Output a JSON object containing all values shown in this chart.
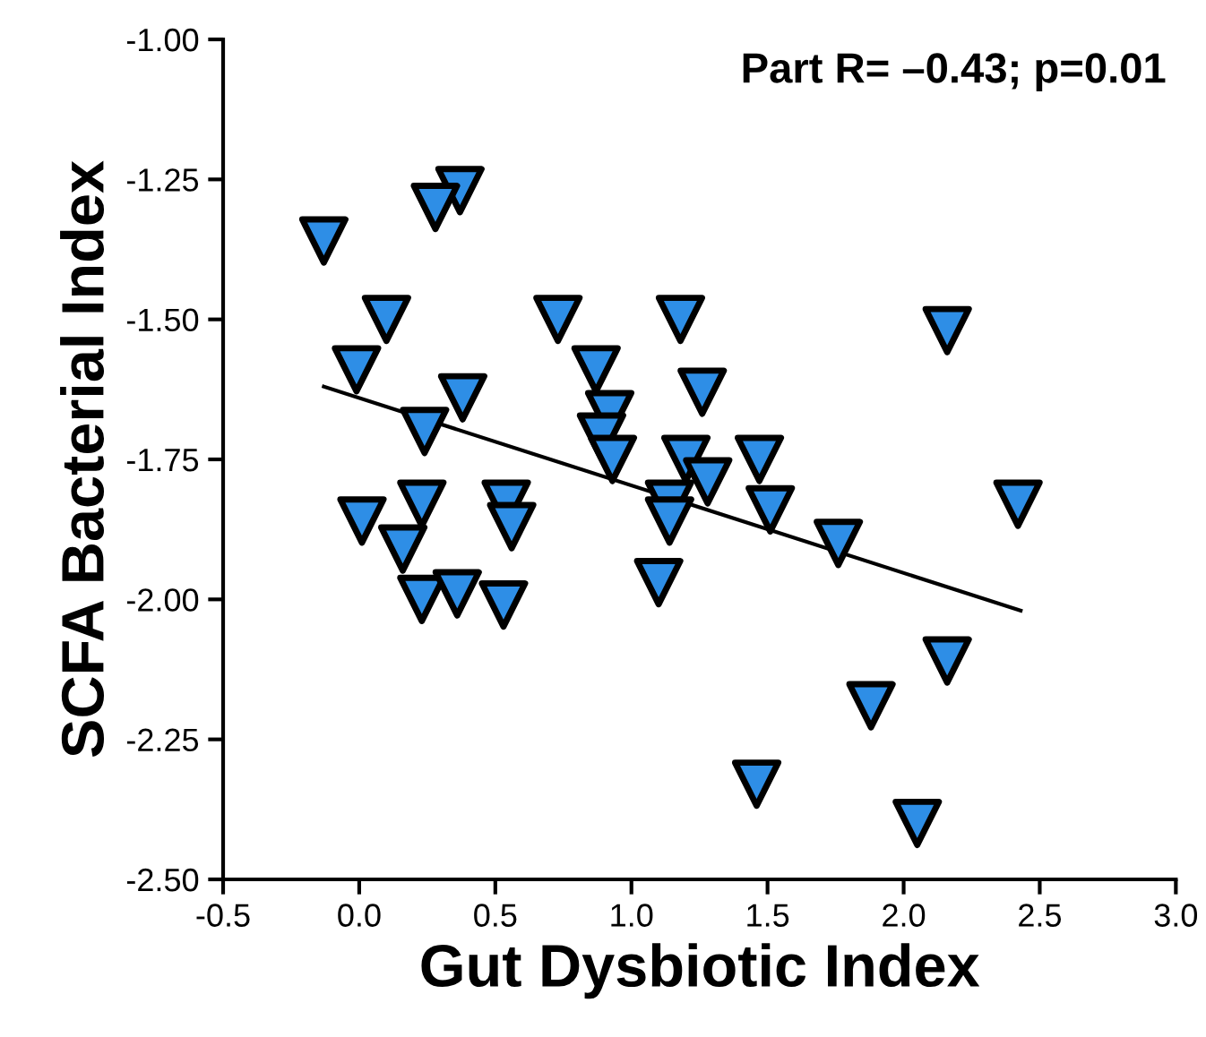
{
  "chart_data": {
    "type": "scatter",
    "xlabel": "Gut Dysbiotic Index",
    "ylabel": "SCFA Bacterial Index",
    "annotations": [
      "Part R= –0.43; p=0.01"
    ],
    "series": [
      {
        "color": "#2e8ee6",
        "marker": "triangle",
        "x": [
          -0.13,
          0.37,
          0.28,
          0.1,
          -0.01,
          0.38,
          0.24,
          0.01,
          0.16,
          0.23,
          0.23,
          0.36,
          0.54,
          0.56,
          0.53,
          0.73,
          0.87,
          0.92,
          0.89,
          0.93,
          1.18,
          1.26,
          1.2,
          1.14,
          1.14,
          1.28,
          1.1,
          1.47,
          1.51,
          1.76,
          1.46,
          1.88,
          2.16,
          2.16,
          2.05,
          2.42
        ],
        "values": [
          -1.36,
          -1.27,
          -1.3,
          -1.5,
          -1.59,
          -1.64,
          -1.7,
          -1.86,
          -1.91,
          -1.83,
          -2.0,
          -1.99,
          -1.83,
          -1.87,
          -2.01,
          -1.5,
          -1.59,
          -1.67,
          -1.71,
          -1.75,
          -1.5,
          -1.63,
          -1.75,
          -1.83,
          -1.86,
          -1.79,
          -1.97,
          -1.75,
          -1.84,
          -1.9,
          -2.33,
          -2.19,
          -1.52,
          -2.11,
          -2.4,
          -1.83
        ]
      },
      {
        "type": "line",
        "color": "#000000",
        "x": [
          -0.13,
          2.43
        ],
        "values": [
          -1.62,
          -2.02
        ]
      }
    ],
    "xlim": [
      -0.5,
      3.0
    ],
    "xticks": [
      -0.5,
      {
        "value": 0,
        "label": "0.0"
      },
      0.5,
      {
        "value": 1,
        "label": "1.0"
      },
      1.5,
      {
        "value": 2,
        "label": "2.0"
      },
      2.5,
      {
        "value": 3,
        "label": "3.0"
      }
    ],
    "ylim": [
      -2.5,
      -1.0
    ],
    "yticks": [
      {
        "value": -2.5,
        "label": "-2.50"
      },
      -2.25,
      {
        "value": -2,
        "label": "-2.00"
      },
      -1.75,
      {
        "value": -1.5,
        "label": "-1.50"
      },
      -1.25,
      {
        "value": -1,
        "label": "-1.00"
      }
    ],
    "grid": false,
    "legend": false
  }
}
